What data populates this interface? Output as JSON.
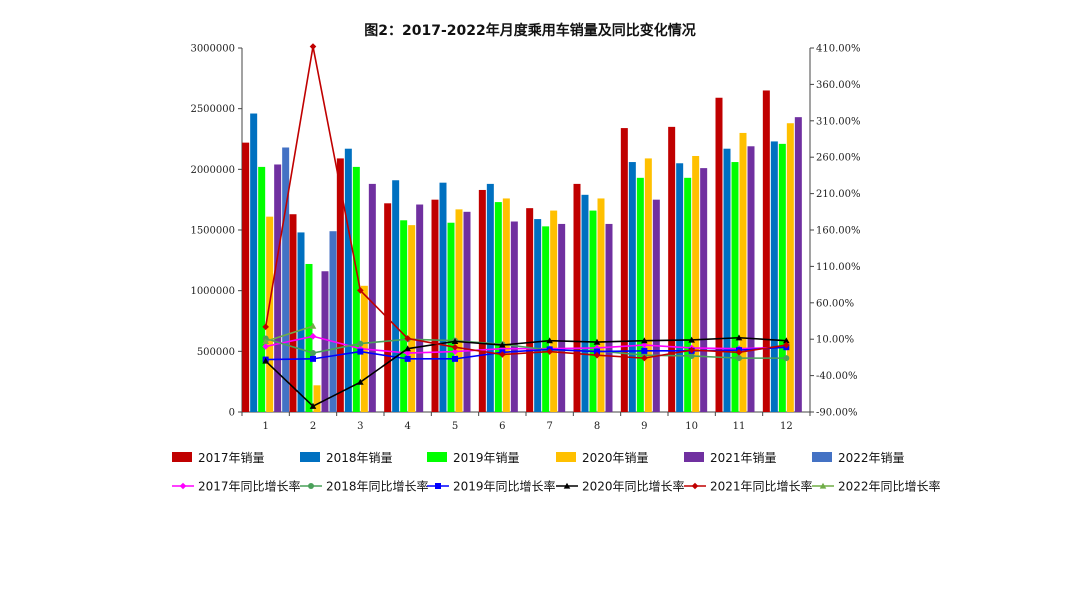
{
  "title": "图2：2017-2022年月度乘用车销量及同比变化情况",
  "chart_data": {
    "type": "bar+line",
    "title": "图2：2017-2022年月度乘用车销量及同比变化情况",
    "categories": [
      "1",
      "2",
      "3",
      "4",
      "5",
      "6",
      "7",
      "8",
      "9",
      "10",
      "11",
      "12"
    ],
    "left_axis": {
      "ylim": [
        0,
        3000000
      ],
      "ticks": [
        "0",
        "500000",
        "1000000",
        "1500000",
        "2000000",
        "2500000",
        "3000000"
      ]
    },
    "right_axis": {
      "ylim": [
        -90,
        410
      ],
      "ticks": [
        "-90.00%",
        "-40.00%",
        "10.00%",
        "60.00%",
        "110.00%",
        "160.00%",
        "210.00%",
        "260.00%",
        "310.00%",
        "360.00%",
        "410.00%"
      ]
    },
    "bar_series": [
      {
        "name": "2017年销量",
        "color": "#c00000",
        "values": [
          2220000,
          1630000,
          2090000,
          1720000,
          1750000,
          1830000,
          1680000,
          1880000,
          2340000,
          2350000,
          2590000,
          2650000
        ]
      },
      {
        "name": "2018年销量",
        "color": "#0070c0",
        "values": [
          2460000,
          1480000,
          2170000,
          1910000,
          1890000,
          1880000,
          1590000,
          1790000,
          2060000,
          2050000,
          2170000,
          2230000
        ]
      },
      {
        "name": "2019年销量",
        "color": "#00ff00",
        "values": [
          2020000,
          1220000,
          2020000,
          1580000,
          1560000,
          1730000,
          1530000,
          1660000,
          1930000,
          1930000,
          2060000,
          2210000
        ]
      },
      {
        "name": "2020年销量",
        "color": "#ffc000",
        "values": [
          1610000,
          220000,
          1040000,
          1540000,
          1670000,
          1760000,
          1660000,
          1760000,
          2090000,
          2110000,
          2300000,
          2380000
        ]
      },
      {
        "name": "2021年销量",
        "color": "#7030a0",
        "values": [
          2040000,
          1160000,
          1880000,
          1710000,
          1650000,
          1570000,
          1550000,
          1550000,
          1750000,
          2010000,
          2190000,
          2430000
        ]
      },
      {
        "name": "2022年销量",
        "color": "#4472c4",
        "values": [
          2180000,
          1490000,
          null,
          null,
          null,
          null,
          null,
          null,
          null,
          null,
          null,
          null
        ]
      }
    ],
    "line_series": [
      {
        "name": "2017年同比增长率",
        "color": "#ff00ff",
        "marker": "diamond",
        "values": [
          0,
          14,
          -3,
          -9,
          -7,
          -3,
          -3,
          -2,
          2,
          -2,
          -3,
          -1
        ]
      },
      {
        "name": "2018年同比增长率",
        "color": "#4aa15a",
        "marker": "circle",
        "values": [
          11,
          -9,
          4,
          10,
          8,
          3,
          -5,
          -6,
          -12,
          -13,
          -16,
          -16
        ]
      },
      {
        "name": "2019年同比增长率",
        "color": "#0000ff",
        "marker": "square",
        "values": [
          -18,
          -17,
          -7,
          -17,
          -17,
          -8,
          -4,
          -7,
          -6,
          -6,
          -5,
          -1
        ]
      },
      {
        "name": "2020年同比增长率",
        "color": "#000000",
        "marker": "triangle",
        "values": [
          -20,
          -82,
          -49,
          -3,
          7,
          2,
          8,
          6,
          8,
          9,
          12,
          8
        ]
      },
      {
        "name": "2021年同比增长率",
        "color": "#c00000",
        "marker": "diamond",
        "values": [
          27,
          412,
          77,
          11,
          -1,
          -11,
          -7,
          -12,
          -16,
          -5,
          -8,
          2
        ]
      },
      {
        "name": "2022年同比增长率",
        "color": "#70ad47",
        "marker": "triangle",
        "values": [
          7,
          28,
          null,
          null,
          null,
          null,
          null,
          null,
          null,
          null,
          null,
          null
        ]
      }
    ]
  }
}
